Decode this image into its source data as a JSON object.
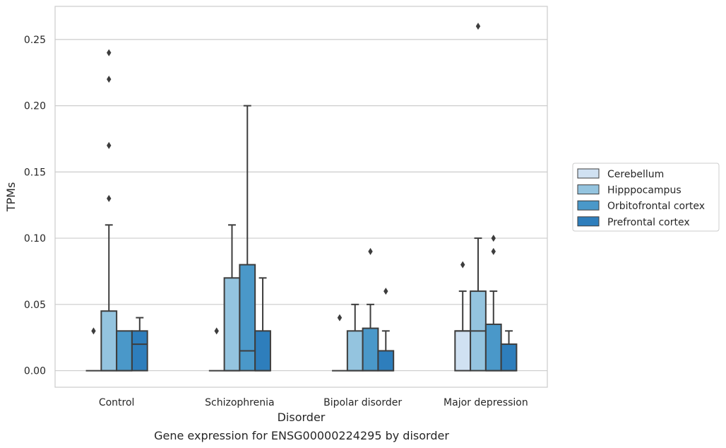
{
  "chart_data": {
    "type": "box",
    "title": "Gene expression for ENSG00000224295 by disorder",
    "xlabel": "Disorder",
    "ylabel": "TPMs",
    "ylim": [
      -0.0125,
      0.275
    ],
    "yticks": [
      0.0,
      0.05,
      0.1,
      0.15,
      0.2,
      0.25
    ],
    "ytick_labels": [
      "0.00",
      "0.05",
      "0.10",
      "0.15",
      "0.20",
      "0.25"
    ],
    "grid": true,
    "legend_position": "outside-right",
    "categories": [
      "Control",
      "Schizophrenia",
      "Bipolar disorder",
      "Major depression"
    ],
    "series": [
      {
        "name": "Cerebellum",
        "color": "#d0e1f2",
        "boxes": [
          {
            "q1": 0,
            "median": 0,
            "q3": 0,
            "whisker_low": 0,
            "whisker_high": 0,
            "outliers": [
              0.03
            ]
          },
          {
            "q1": 0,
            "median": 0,
            "q3": 0,
            "whisker_low": 0,
            "whisker_high": 0,
            "outliers": [
              0.03
            ]
          },
          {
            "q1": 0,
            "median": 0,
            "q3": 0,
            "whisker_low": 0,
            "whisker_high": 0,
            "outliers": [
              0.04
            ]
          },
          {
            "q1": 0,
            "median": 0.03,
            "q3": 0.03,
            "whisker_low": 0,
            "whisker_high": 0.06,
            "outliers": [
              0.08
            ]
          }
        ]
      },
      {
        "name": "Hipppocampus",
        "color": "#94c4df",
        "boxes": [
          {
            "q1": 0,
            "median": 0,
            "q3": 0.045,
            "whisker_low": 0,
            "whisker_high": 0.11,
            "outliers": [
              0.13,
              0.17,
              0.22,
              0.24
            ]
          },
          {
            "q1": 0,
            "median": 0,
            "q3": 0.07,
            "whisker_low": 0,
            "whisker_high": 0.11,
            "outliers": []
          },
          {
            "q1": 0,
            "median": 0,
            "q3": 0.03,
            "whisker_low": 0,
            "whisker_high": 0.05,
            "outliers": []
          },
          {
            "q1": 0,
            "median": 0.03,
            "q3": 0.06,
            "whisker_low": 0,
            "whisker_high": 0.1,
            "outliers": [
              0.26
            ]
          }
        ]
      },
      {
        "name": "Orbitofrontal cortex",
        "color": "#4a98c9",
        "boxes": [
          {
            "q1": 0,
            "median": 0,
            "q3": 0.03,
            "whisker_low": 0,
            "whisker_high": 0.03,
            "outliers": []
          },
          {
            "q1": 0,
            "median": 0.015,
            "q3": 0.08,
            "whisker_low": 0,
            "whisker_high": 0.2,
            "outliers": []
          },
          {
            "q1": 0,
            "median": 0,
            "q3": 0.032,
            "whisker_low": 0,
            "whisker_high": 0.05,
            "outliers": [
              0.09
            ]
          },
          {
            "q1": 0,
            "median": 0,
            "q3": 0.035,
            "whisker_low": 0,
            "whisker_high": 0.06,
            "outliers": [
              0.09,
              0.1
            ]
          }
        ]
      },
      {
        "name": "Prefrontal cortex",
        "color": "#2e7ebc",
        "boxes": [
          {
            "q1": 0,
            "median": 0.02,
            "q3": 0.03,
            "whisker_low": 0,
            "whisker_high": 0.04,
            "outliers": []
          },
          {
            "q1": 0,
            "median": 0,
            "q3": 0.03,
            "whisker_low": 0,
            "whisker_high": 0.07,
            "outliers": []
          },
          {
            "q1": 0,
            "median": 0,
            "q3": 0.015,
            "whisker_low": 0,
            "whisker_high": 0.03,
            "outliers": [
              0.06
            ]
          },
          {
            "q1": 0,
            "median": 0,
            "q3": 0.02,
            "whisker_low": 0,
            "whisker_high": 0.03,
            "outliers": []
          }
        ]
      }
    ]
  }
}
